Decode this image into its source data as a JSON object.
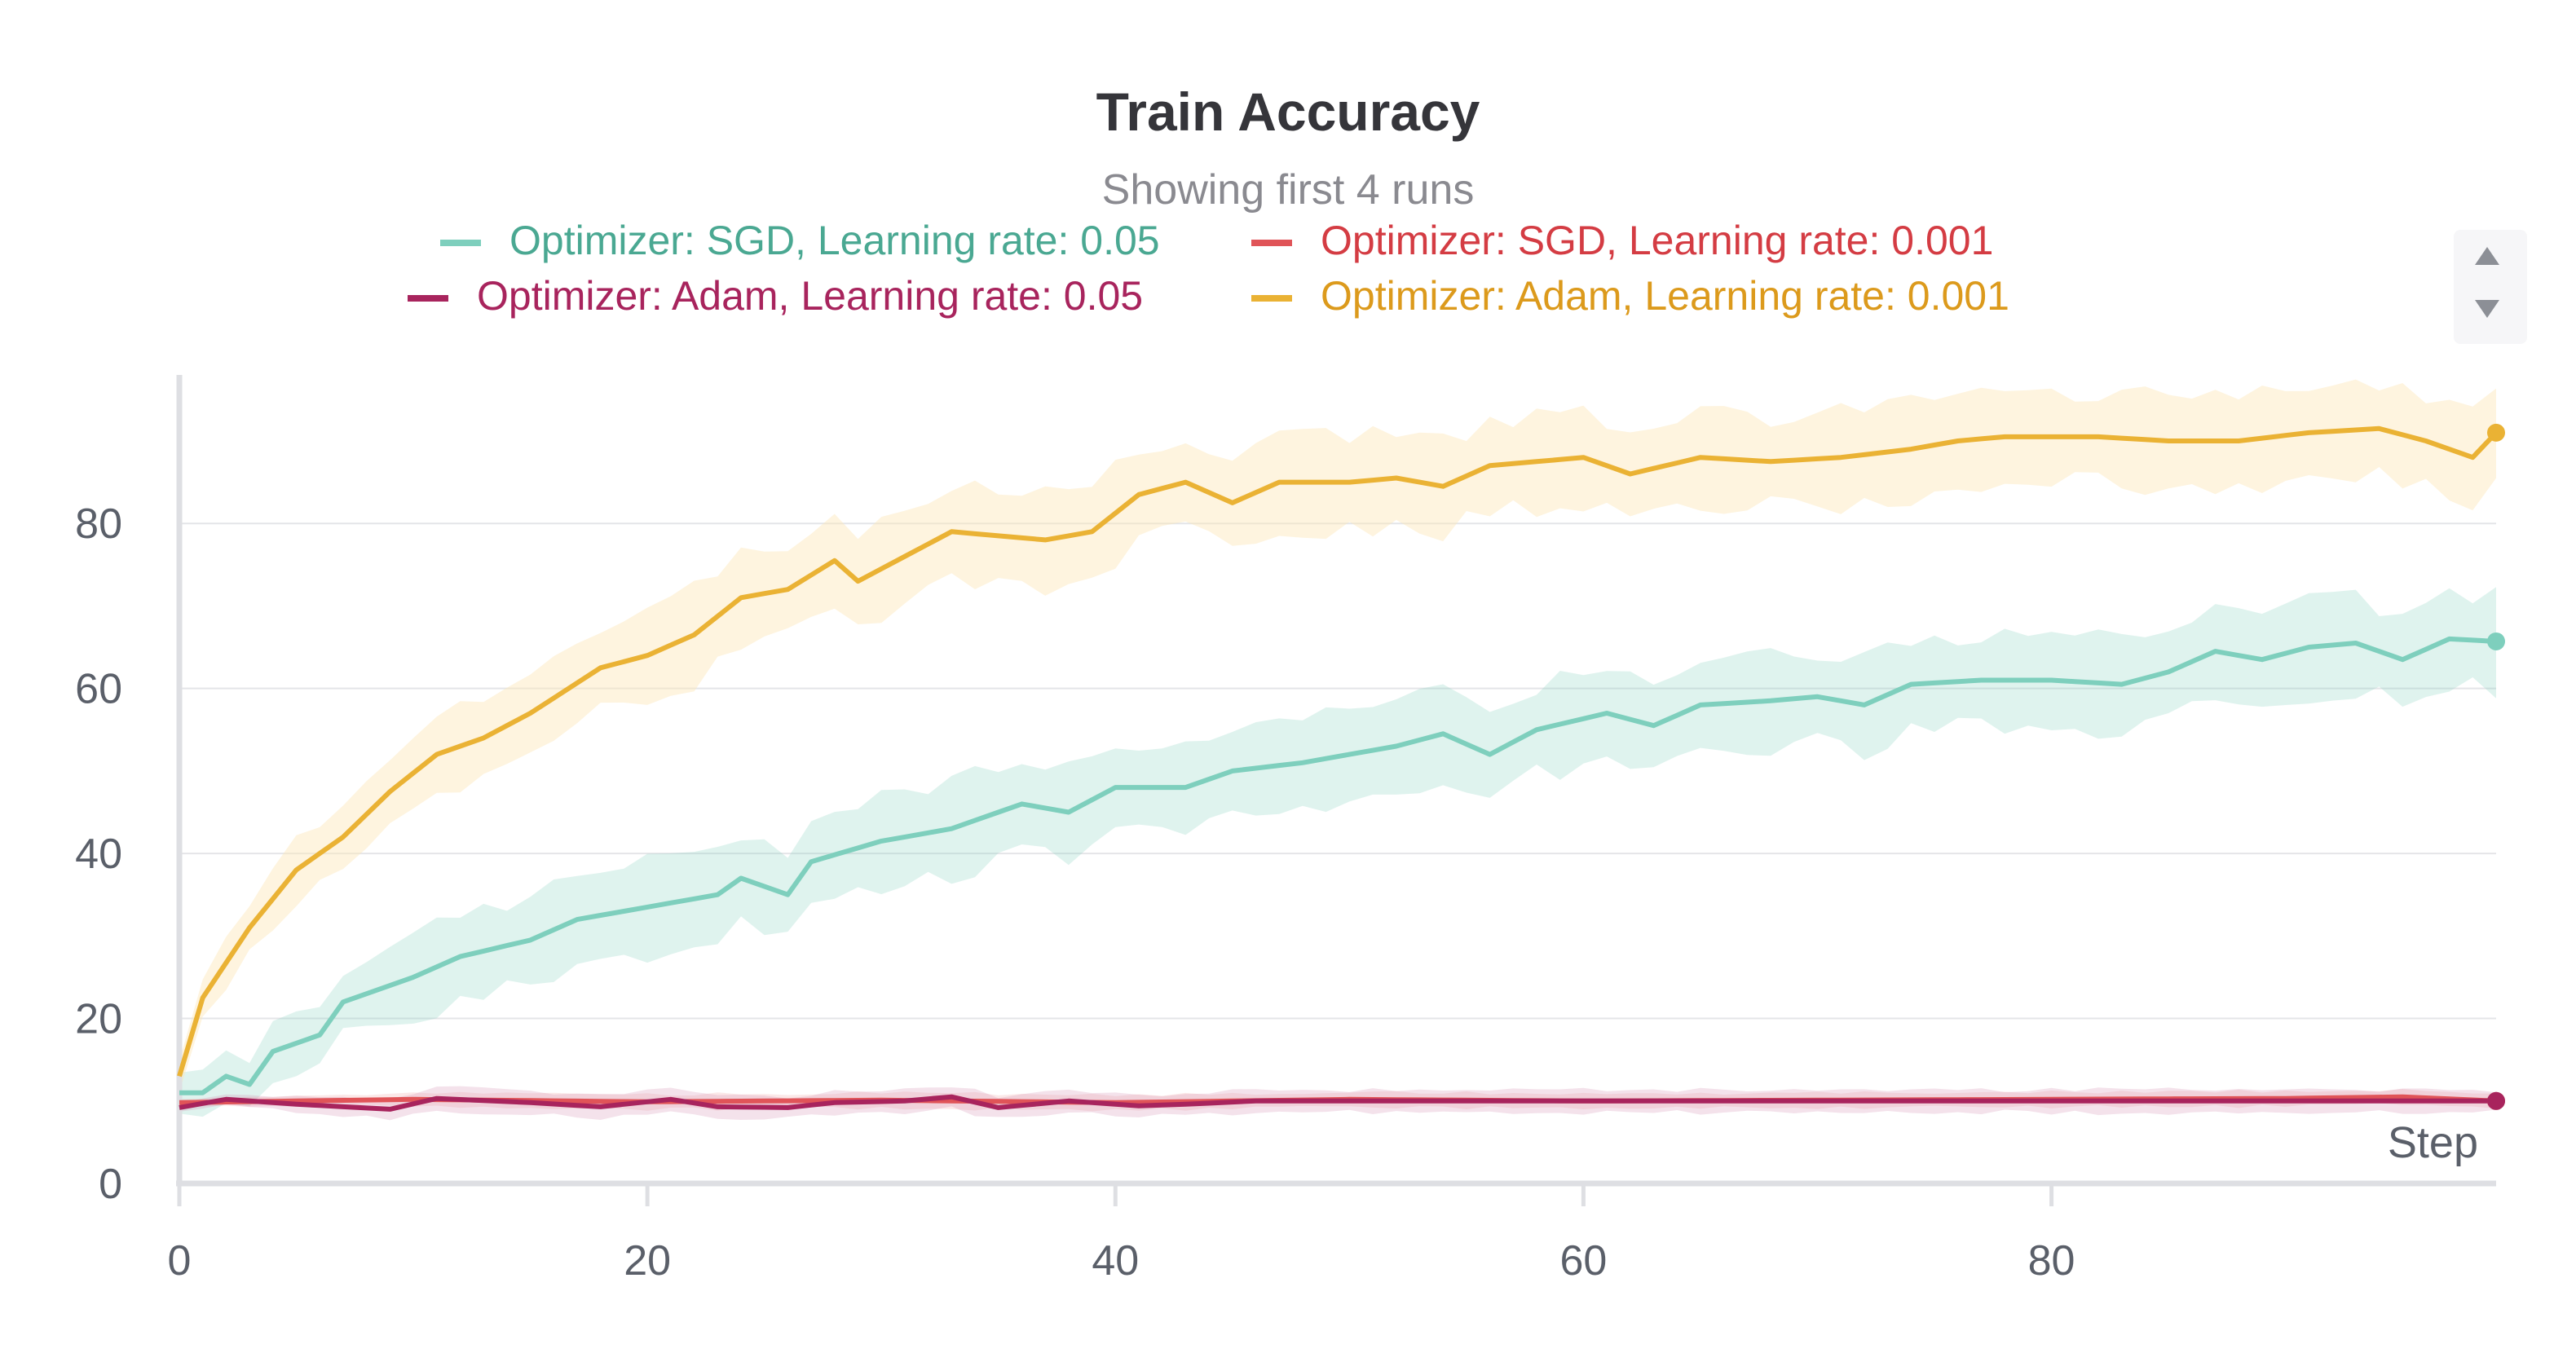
{
  "chart_data": {
    "type": "line",
    "title": "Train Accuracy",
    "subtitle": "Showing first 4 runs",
    "xlabel": "Step",
    "ylabel": "",
    "xlim": [
      0,
      99
    ],
    "ylim": [
      0,
      98
    ],
    "x_ticks": [
      "0",
      "20",
      "40",
      "60",
      "80"
    ],
    "y_ticks": [
      "0",
      "20",
      "40",
      "60",
      "80"
    ],
    "grid": true,
    "legend_position": "top",
    "series": [
      {
        "name": "Optimizer: SGD, Learning rate: 0.05",
        "color": "#7ecfbd",
        "label_color": "#4aa892",
        "band_color": "#7ecfbd",
        "anchors": [
          [
            0,
            11
          ],
          [
            1,
            11
          ],
          [
            2,
            13
          ],
          [
            3,
            12
          ],
          [
            4,
            16
          ],
          [
            6,
            18
          ],
          [
            7,
            22
          ],
          [
            10,
            25
          ],
          [
            12,
            27.5
          ],
          [
            15,
            29.5
          ],
          [
            17,
            32
          ],
          [
            20,
            33.5
          ],
          [
            23,
            35
          ],
          [
            24,
            37
          ],
          [
            26,
            35
          ],
          [
            27,
            39
          ],
          [
            30,
            41.5
          ],
          [
            33,
            43
          ],
          [
            36,
            46
          ],
          [
            38,
            45
          ],
          [
            40,
            48
          ],
          [
            43,
            48
          ],
          [
            45,
            50
          ],
          [
            48,
            51
          ],
          [
            50,
            52
          ],
          [
            52,
            53
          ],
          [
            54,
            54.5
          ],
          [
            56,
            52
          ],
          [
            58,
            55
          ],
          [
            61,
            57
          ],
          [
            63,
            55.5
          ],
          [
            65,
            58
          ],
          [
            68,
            58.5
          ],
          [
            70,
            59
          ],
          [
            72,
            58
          ],
          [
            74,
            60.5
          ],
          [
            77,
            61
          ],
          [
            80,
            61
          ],
          [
            83,
            60.5
          ],
          [
            85,
            62
          ],
          [
            87,
            64.5
          ],
          [
            89,
            63.5
          ],
          [
            91,
            65
          ],
          [
            93,
            65.5
          ],
          [
            95,
            63.5
          ],
          [
            97,
            66
          ],
          [
            99,
            65.7
          ]
        ],
        "band_width": 6
      },
      {
        "name": "Optimizer: SGD, Learning rate: 0.001",
        "color": "#e05458",
        "label_color": "#d43c43",
        "band_color": "#f0a3a5",
        "anchors": [
          [
            0,
            9.8
          ],
          [
            10,
            10.2
          ],
          [
            20,
            9.9
          ],
          [
            30,
            10.1
          ],
          [
            40,
            9.8
          ],
          [
            50,
            10.2
          ],
          [
            60,
            10
          ],
          [
            70,
            10.1
          ],
          [
            80,
            10.2
          ],
          [
            90,
            10.3
          ],
          [
            95,
            10.5
          ],
          [
            99,
            10
          ]
        ],
        "band_width": 1
      },
      {
        "name": "Optimizer: Adam, Learning rate: 0.05",
        "color": "#a8245d",
        "label_color": "#a8245d",
        "band_color": "#d48bb0",
        "anchors": [
          [
            0,
            9.2
          ],
          [
            2,
            10.2
          ],
          [
            5,
            9.6
          ],
          [
            9,
            9
          ],
          [
            11,
            10.3
          ],
          [
            15,
            9.8
          ],
          [
            18,
            9.3
          ],
          [
            21,
            10.2
          ],
          [
            23,
            9.3
          ],
          [
            26,
            9.2
          ],
          [
            28,
            9.8
          ],
          [
            31,
            10
          ],
          [
            33,
            10.5
          ],
          [
            35,
            9.2
          ],
          [
            38,
            10
          ],
          [
            41,
            9.4
          ],
          [
            43,
            9.6
          ],
          [
            46,
            10
          ],
          [
            99,
            10
          ]
        ],
        "band_width": 1.5
      },
      {
        "name": "Optimizer: Adam, Learning rate: 0.001",
        "color": "#eab234",
        "label_color": "#dc9a1c",
        "band_color": "#fde7b8",
        "anchors": [
          [
            0,
            13
          ],
          [
            1,
            22.5
          ],
          [
            3,
            31
          ],
          [
            5,
            38
          ],
          [
            7,
            42
          ],
          [
            9,
            47.5
          ],
          [
            11,
            52
          ],
          [
            13,
            54
          ],
          [
            15,
            57
          ],
          [
            18,
            62.5
          ],
          [
            20,
            64
          ],
          [
            22,
            66.5
          ],
          [
            24,
            71
          ],
          [
            26,
            72
          ],
          [
            28,
            75.5
          ],
          [
            29,
            73
          ],
          [
            31,
            76
          ],
          [
            33,
            79
          ],
          [
            35,
            78.5
          ],
          [
            37,
            78
          ],
          [
            39,
            79
          ],
          [
            41,
            83.5
          ],
          [
            43,
            85
          ],
          [
            45,
            82.5
          ],
          [
            47,
            85
          ],
          [
            50,
            85
          ],
          [
            52,
            85.5
          ],
          [
            54,
            84.5
          ],
          [
            56,
            87
          ],
          [
            58,
            87.5
          ],
          [
            60,
            88
          ],
          [
            62,
            86
          ],
          [
            65,
            88
          ],
          [
            68,
            87.5
          ],
          [
            71,
            88
          ],
          [
            74,
            89
          ],
          [
            76,
            90
          ],
          [
            78,
            90.5
          ],
          [
            80,
            90.5
          ],
          [
            82,
            90.5
          ],
          [
            85,
            90
          ],
          [
            88,
            90
          ],
          [
            91,
            91
          ],
          [
            94,
            91.5
          ],
          [
            96,
            90
          ],
          [
            98,
            88
          ],
          [
            99,
            91
          ]
        ],
        "band_width": 6
      }
    ]
  },
  "legend": {
    "scroll_up_icon": "triangle-up-icon",
    "scroll_down_icon": "triangle-down-icon"
  }
}
